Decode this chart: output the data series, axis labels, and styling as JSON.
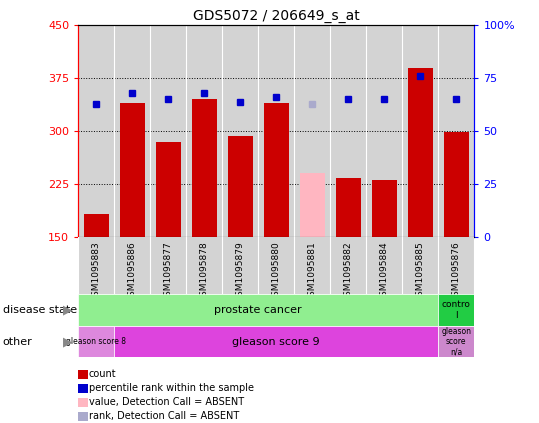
{
  "title": "GDS5072 / 206649_s_at",
  "samples": [
    "GSM1095883",
    "GSM1095886",
    "GSM1095877",
    "GSM1095878",
    "GSM1095879",
    "GSM1095880",
    "GSM1095881",
    "GSM1095882",
    "GSM1095884",
    "GSM1095885",
    "GSM1095876"
  ],
  "bar_values": [
    182,
    340,
    284,
    345,
    293,
    340,
    240,
    234,
    230,
    390,
    299
  ],
  "bar_colors": [
    "#cc0000",
    "#cc0000",
    "#cc0000",
    "#cc0000",
    "#cc0000",
    "#cc0000",
    "#ffb6c1",
    "#cc0000",
    "#cc0000",
    "#cc0000",
    "#cc0000"
  ],
  "dot_values": [
    63,
    68,
    65,
    68,
    64,
    66,
    63,
    65,
    65,
    76,
    65
  ],
  "dot_colors": [
    "#0000cc",
    "#0000cc",
    "#0000cc",
    "#0000cc",
    "#0000cc",
    "#0000cc",
    "#aaaacc",
    "#0000cc",
    "#0000cc",
    "#0000cc",
    "#0000cc"
  ],
  "ylim_left": [
    150,
    450
  ],
  "ylim_right": [
    0,
    100
  ],
  "yticks_left": [
    150,
    225,
    300,
    375,
    450
  ],
  "yticks_right": [
    0,
    25,
    50,
    75,
    100
  ],
  "bg_color": "#d3d3d3",
  "pc_color": "#90ee90",
  "ctrl_color": "#22cc44",
  "gs8_color": "#dd88dd",
  "gs9_color": "#dd44dd",
  "gsna_color": "#cc88cc",
  "legend_items": [
    {
      "label": "count",
      "color": "#cc0000"
    },
    {
      "label": "percentile rank within the sample",
      "color": "#0000cc"
    },
    {
      "label": "value, Detection Call = ABSENT",
      "color": "#ffb6c1"
    },
    {
      "label": "rank, Detection Call = ABSENT",
      "color": "#aaaacc"
    }
  ]
}
